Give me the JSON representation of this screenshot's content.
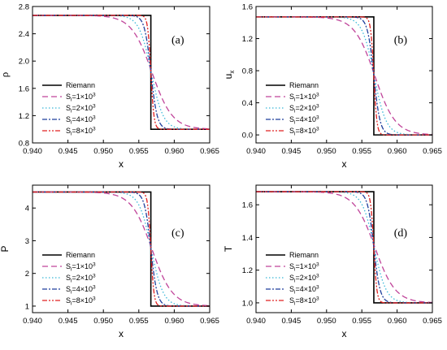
{
  "chart_data": [
    {
      "type": "line",
      "panel_label": "(a)",
      "xlabel": "x",
      "ylabel": "ρ",
      "xlim": [
        0.94,
        0.965
      ],
      "ylim": [
        0.8,
        2.8
      ],
      "xticks": [
        0.94,
        0.945,
        0.95,
        0.955,
        0.96,
        0.965
      ],
      "xtick_labels": [
        "0.940",
        "0.945",
        "0.950",
        "0.955",
        "0.960",
        "0.965"
      ],
      "yticks": [
        0.8,
        1.2,
        1.6,
        2.0,
        2.4,
        2.8
      ],
      "ytick_labels": [
        "0.8",
        "1.2",
        "1.6",
        "2.0",
        "2.4",
        "2.8"
      ],
      "legend_position": "lower-left",
      "left": 2.67,
      "right": 1.0,
      "x_shock": 0.9567,
      "series": [
        {
          "name": "Riemann",
          "base": "S",
          "sup": "",
          "color": "#000000",
          "dash": "",
          "x": [
            0.94,
            0.9567,
            0.9567,
            0.965
          ],
          "y": [
            2.67,
            2.67,
            1.0,
            1.0
          ]
        },
        {
          "name": "Sᵢ=1×10³",
          "base": "S",
          "sub": "i",
          "coef": "=1×10",
          "sup": "3",
          "color": "#c0449a",
          "dash": "7,4",
          "x0": 0.95685,
          "w": 0.00145
        },
        {
          "name": "Sᵢ=2×10³",
          "base": "S",
          "sub": "i",
          "coef": "=2×10",
          "sup": "3",
          "color": "#39b8d8",
          "dash": "1.5,2.5",
          "x0": 0.95675,
          "w": 0.00085
        },
        {
          "name": "Sᵢ=4×10³",
          "base": "S",
          "sub": "i",
          "coef": "=4×10",
          "sup": "3",
          "color": "#1f3f9c",
          "dash": "6,2,2,2",
          "x0": 0.9567,
          "w": 0.00045
        },
        {
          "name": "Sᵢ=8×10³",
          "base": "S",
          "sub": "i",
          "coef": "=8×10",
          "sup": "3",
          "color": "#e02020",
          "dash": "6,2,2,2,2,2",
          "x0": 0.9567,
          "w": 0.00022
        }
      ]
    },
    {
      "type": "line",
      "panel_label": "(b)",
      "xlabel": "x",
      "ylabel": "u",
      "ylabel_sub": "x",
      "xlim": [
        0.94,
        0.965
      ],
      "ylim": [
        -0.1,
        1.6
      ],
      "xticks": [
        0.94,
        0.945,
        0.95,
        0.955,
        0.96,
        0.965
      ],
      "xtick_labels": [
        "0.940",
        "0.945",
        "0.950",
        "0.955",
        "0.960",
        "0.965"
      ],
      "yticks": [
        0.0,
        0.4,
        0.8,
        1.2,
        1.6
      ],
      "ytick_labels": [
        "0.0",
        "0.4",
        "0.8",
        "1.2",
        "1.6"
      ],
      "legend_position": "lower-left",
      "left": 1.47,
      "right": 0.0,
      "x_shock": 0.9567,
      "series": [
        {
          "name": "Riemann",
          "color": "#000000",
          "dash": "",
          "x": [
            0.94,
            0.9567,
            0.9567,
            0.965
          ],
          "y": [
            1.47,
            1.47,
            0.0,
            0.0
          ]
        },
        {
          "name": "Sᵢ=1×10³",
          "sub": "i",
          "coef": "=1×10",
          "sup": "3",
          "color": "#c0449a",
          "dash": "7,4",
          "x0": 0.95685,
          "w": 0.00145
        },
        {
          "name": "Sᵢ=2×10³",
          "sub": "i",
          "coef": "=2×10",
          "sup": "3",
          "color": "#39b8d8",
          "dash": "1.5,2.5",
          "x0": 0.95675,
          "w": 0.00085
        },
        {
          "name": "Sᵢ=4×10³",
          "sub": "i",
          "coef": "=4×10",
          "sup": "3",
          "color": "#1f3f9c",
          "dash": "6,2,2,2",
          "x0": 0.9567,
          "w": 0.00045
        },
        {
          "name": "Sᵢ=8×10³",
          "sub": "i",
          "coef": "=8×10",
          "sup": "3",
          "color": "#e02020",
          "dash": "6,2,2,2,2,2",
          "x0": 0.9567,
          "w": 0.00022
        }
      ]
    },
    {
      "type": "line",
      "panel_label": "(c)",
      "xlabel": "x",
      "ylabel": "P",
      "xlim": [
        0.94,
        0.965
      ],
      "ylim": [
        0.8,
        4.7
      ],
      "xticks": [
        0.94,
        0.945,
        0.95,
        0.955,
        0.96,
        0.965
      ],
      "xtick_labels": [
        "0.940",
        "0.945",
        "0.950",
        "0.955",
        "0.960",
        "0.965"
      ],
      "yticks": [
        1,
        2,
        3,
        4
      ],
      "ytick_labels": [
        "1",
        "2",
        "3",
        "4"
      ],
      "legend_position": "lower-left",
      "left": 4.49,
      "right": 1.0,
      "x_shock": 0.9567,
      "series": [
        {
          "name": "Riemann",
          "color": "#000000",
          "dash": "",
          "x": [
            0.94,
            0.9567,
            0.9567,
            0.965
          ],
          "y": [
            4.49,
            4.49,
            1.0,
            1.0
          ]
        },
        {
          "name": "Sᵢ=1×10³",
          "sub": "i",
          "coef": "=1×10",
          "sup": "3",
          "color": "#c0449a",
          "dash": "7,4",
          "x0": 0.95685,
          "w": 0.00145
        },
        {
          "name": "Sᵢ=2×10³",
          "sub": "i",
          "coef": "=2×10",
          "sup": "3",
          "color": "#39b8d8",
          "dash": "1.5,2.5",
          "x0": 0.95675,
          "w": 0.00085
        },
        {
          "name": "Sᵢ=4×10³",
          "sub": "i",
          "coef": "=4×10",
          "sup": "3",
          "color": "#1f3f9c",
          "dash": "6,2,2,2",
          "x0": 0.9567,
          "w": 0.00045
        },
        {
          "name": "Sᵢ=8×10³",
          "sub": "i",
          "coef": "=8×10",
          "sup": "3",
          "color": "#e02020",
          "dash": "6,2,2,2,2,2",
          "x0": 0.9567,
          "w": 0.00022
        }
      ]
    },
    {
      "type": "line",
      "panel_label": "(d)",
      "xlabel": "x",
      "ylabel": "T",
      "xlim": [
        0.94,
        0.965
      ],
      "ylim": [
        0.94,
        1.72
      ],
      "xticks": [
        0.94,
        0.945,
        0.95,
        0.955,
        0.96,
        0.965
      ],
      "xtick_labels": [
        "0.940",
        "0.945",
        "0.950",
        "0.955",
        "0.960",
        "0.965"
      ],
      "yticks": [
        1.0,
        1.2,
        1.4,
        1.6
      ],
      "ytick_labels": [
        "1.0",
        "1.2",
        "1.4",
        "1.6"
      ],
      "legend_position": "lower-left",
      "left": 1.68,
      "right": 1.0,
      "x_shock": 0.9567,
      "series": [
        {
          "name": "Riemann",
          "color": "#000000",
          "dash": "",
          "x": [
            0.94,
            0.9567,
            0.9567,
            0.965
          ],
          "y": [
            1.68,
            1.68,
            1.0,
            1.0
          ]
        },
        {
          "name": "Sᵢ=1×10³",
          "sub": "i",
          "coef": "=1×10",
          "sup": "3",
          "color": "#c0449a",
          "dash": "7,4",
          "x0": 0.95685,
          "w": 0.00145
        },
        {
          "name": "Sᵢ=2×10³",
          "sub": "i",
          "coef": "=2×10",
          "sup": "3",
          "color": "#39b8d8",
          "dash": "1.5,2.5",
          "x0": 0.95675,
          "w": 0.00085
        },
        {
          "name": "Sᵢ=4×10³",
          "sub": "i",
          "coef": "=4×10",
          "sup": "3",
          "color": "#1f3f9c",
          "dash": "6,2,2,2",
          "x0": 0.9567,
          "w": 0.00045
        },
        {
          "name": "Sᵢ=8×10³",
          "sub": "i",
          "coef": "=8×10",
          "sup": "3",
          "color": "#e02020",
          "dash": "6,2,2,2,2,2",
          "x0": 0.9567,
          "w": 0.00022
        }
      ]
    }
  ]
}
